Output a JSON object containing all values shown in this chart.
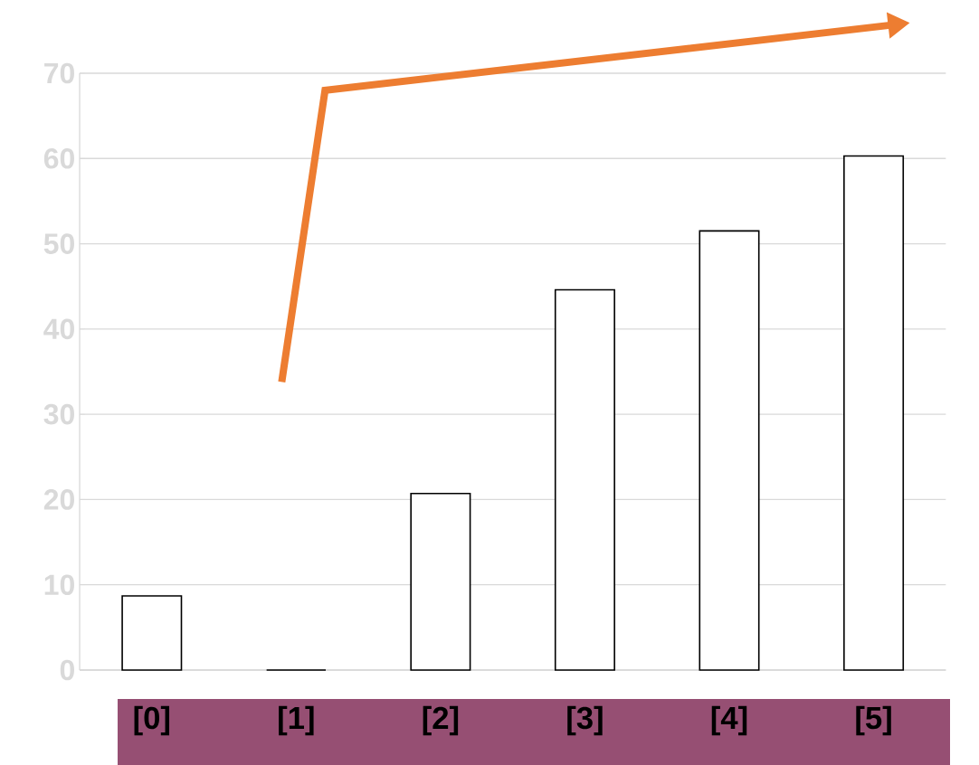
{
  "chart_data": {
    "type": "bar",
    "categories": [
      "[0]",
      "[1]",
      "[2]",
      "[3]",
      "[4]",
      "[5]"
    ],
    "values": [
      8.7,
      0,
      20.7,
      44.6,
      51.5,
      60.3
    ],
    "colors": [
      "#ffffff",
      "#000000",
      "#ffffff",
      "#ffffff",
      "#ffffff",
      "#ffffff"
    ],
    "ylim": [
      0,
      70
    ],
    "yticks": [
      0,
      10,
      20,
      30,
      40,
      50,
      60,
      70
    ],
    "grid": "y"
  }
}
